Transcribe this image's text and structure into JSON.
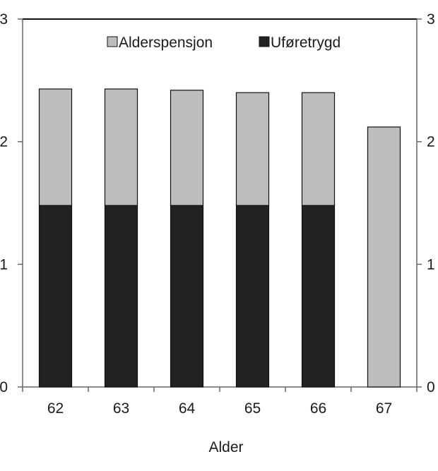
{
  "chart_data": {
    "type": "bar",
    "stacked": true,
    "title": "",
    "xlabel": "Alder",
    "ylabel": "",
    "categories": [
      "62",
      "63",
      "64",
      "65",
      "66",
      "67"
    ],
    "ylim": [
      0,
      3
    ],
    "y_ticks": [
      "0",
      "1",
      "2",
      "3"
    ],
    "y_ticks_right": [
      "0",
      "1",
      "2",
      "3"
    ],
    "grid": false,
    "legend_position": "top-center",
    "series": [
      {
        "name": "Uføretrygd",
        "color": "#222222",
        "values": [
          1.48,
          1.48,
          1.48,
          1.48,
          1.48,
          0
        ]
      },
      {
        "name": "Alderspensjon",
        "color": "#bdbdbd",
        "values": [
          0.95,
          0.95,
          0.94,
          0.92,
          0.92,
          2.12
        ]
      }
    ],
    "legend_order": [
      "Alderspensjon",
      "Uføretrygd"
    ]
  }
}
